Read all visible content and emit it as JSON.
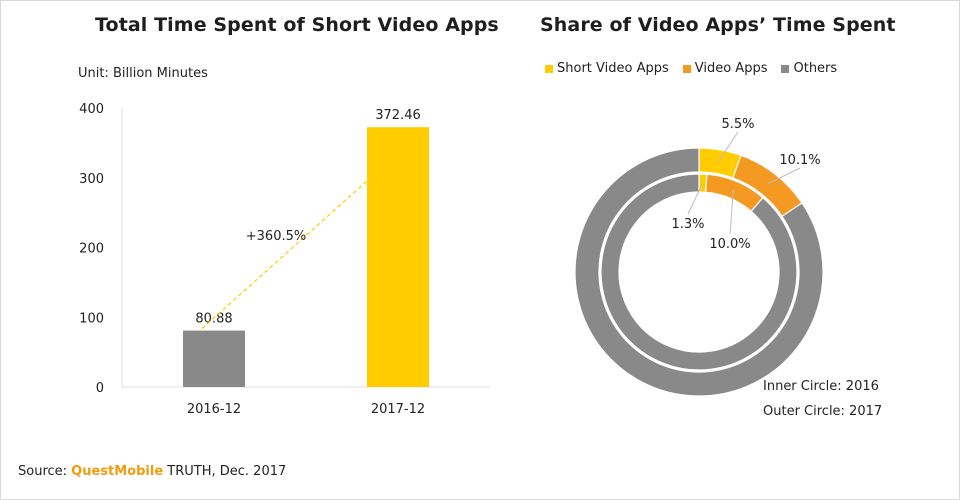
{
  "bar_title": "Total Time Spent of Short Video Apps",
  "donut_title": "Share of Video Apps’ Time Spent",
  "unit": "Unit: Billion Minutes",
  "growth_label": "+360.5%",
  "source": {
    "prefix": "Source: ",
    "brand": "QuestMobile",
    "suffix": " TRUTH, Dec. 2017"
  },
  "donut_notes": {
    "inner": "Inner Circle: 2016",
    "outer": "Outer Circle: 2017"
  },
  "colors": {
    "grey": "#898989",
    "yellow": "#ffcc00",
    "orange": "#f49a23",
    "gridline": "#e5e5e5"
  },
  "chart_data": [
    {
      "type": "bar",
      "title": "Total Time Spent of Short Video Apps",
      "categories": [
        "2016-12",
        "2017-12"
      ],
      "values": [
        80.88,
        372.46
      ],
      "value_labels": [
        "80.88",
        "372.46"
      ],
      "bar_colors": [
        "#898989",
        "#ffcc00"
      ],
      "ylim": [
        0,
        400
      ],
      "yticks": [
        0,
        100,
        200,
        300,
        400
      ],
      "ylabel": "Unit: Billion Minutes",
      "annotation": "+360.5%"
    },
    {
      "type": "pie",
      "style": "double-donut",
      "title": "Share of Video Apps’ Time Spent",
      "legend": [
        "Short Video Apps",
        "Video Apps",
        "Others"
      ],
      "legend_position": "top",
      "series_colors": [
        "#ffcc00",
        "#f49a23",
        "#898989"
      ],
      "rings": [
        {
          "name": "Inner Circle: 2016",
          "ring": "inner",
          "values": [
            1.3,
            10.0,
            88.7
          ],
          "labels": [
            "1.3%",
            "10.0%",
            ""
          ]
        },
        {
          "name": "Outer Circle: 2017",
          "ring": "outer",
          "values": [
            5.5,
            10.1,
            84.4
          ],
          "labels": [
            "5.5%",
            "10.1%",
            ""
          ]
        }
      ]
    }
  ]
}
